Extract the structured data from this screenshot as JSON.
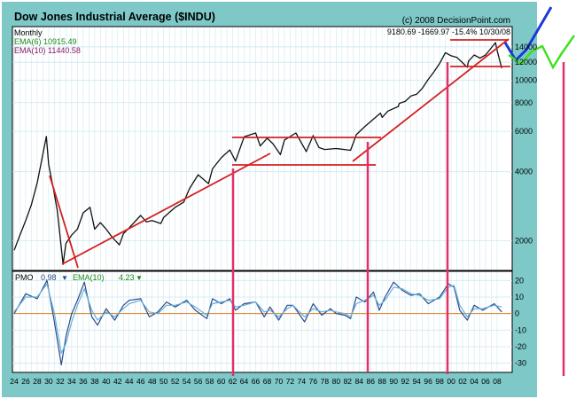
{
  "header": {
    "title": "Dow Jones Industrial Average ($INDU)",
    "copyright": "(c) 2008 DecisionPoint.com",
    "period": "Monthly",
    "ema6_label": "EMA(6) 10915.49",
    "ema10_label": "EMA(10) 11440.58",
    "readout": "9180.69 -1669.97 -15.4% 10/30/08"
  },
  "pmo_panel": {
    "label": "PMO",
    "pmo_value": "0.98",
    "pmo_arrow": "▼",
    "ema_label": "EMA(10)",
    "ema_value": "4.23",
    "ema_arrow": "▼"
  },
  "colors": {
    "frame": "#7ec8c8",
    "price_line": "#111111",
    "trendline": "#d42020",
    "vertical_marker": "#e0306a",
    "pmo_line": "#2a4a8a",
    "pmo_signal": "#66b0d8",
    "zero_line": "#e08020",
    "grid": "#cde8f0",
    "projection_blue": "#1a3ad8",
    "projection_green": "#40e020"
  },
  "chart_data": [
    {
      "type": "line",
      "title": "Dow Jones Industrial Average ($INDU)",
      "scale": "log",
      "ylim": [
        1500,
        17000
      ],
      "y_ticks": [
        2000,
        4000,
        6000,
        8000,
        10000,
        12000,
        14000
      ],
      "x_range": [
        1924,
        2010
      ],
      "x_tick_labels": [
        "24",
        "26",
        "28",
        "30",
        "32",
        "34",
        "36",
        "38",
        "40",
        "42",
        "44",
        "46",
        "48",
        "50",
        "52",
        "54",
        "56",
        "58",
        "60",
        "62",
        "64",
        "66",
        "68",
        "70",
        "72",
        "74",
        "76",
        "78",
        "80",
        "82",
        "84",
        "86",
        "88",
        "90",
        "92",
        "94",
        "96",
        "98",
        "00",
        "02",
        "04",
        "06",
        "08"
      ],
      "series": [
        {
          "x": [
            1924,
            1925,
            1926,
            1927,
            1928,
            1929.6,
            1930,
            1930.8,
            1931.5,
            1932.5,
            1933,
            1934,
            1935,
            1936,
            1937.2,
            1938,
            1939,
            1940,
            1941,
            1942.3,
            1943,
            1944,
            1946,
            1947,
            1948,
            1949.5,
            1950,
            1952,
            1953.5,
            1954.5,
            1956,
            1957.8,
            1958.5,
            1960,
            1961.5,
            1962.5,
            1964,
            1966,
            1966.8,
            1968,
            1969,
            1970.3,
            1971,
            1973,
            1974.8,
            1976,
            1977,
            1978,
            1980,
            1982.5,
            1983.5,
            1985,
            1987.7,
            1988,
            1989,
            1990.8,
            1991,
            1992,
            1993,
            1994,
            1995,
            1996,
            1997,
            1998,
            1999,
            2000,
            2001,
            2002.8,
            2003,
            2004,
            2005,
            2006,
            2007.7,
            2008,
            2008.8
          ],
          "y": [
            1820,
            2120,
            2450,
            2880,
            3580,
            5700,
            4300,
            3400,
            2700,
            1580,
            1950,
            2120,
            2250,
            2650,
            2800,
            2250,
            2400,
            2250,
            2080,
            1920,
            2150,
            2280,
            2580,
            2420,
            2450,
            2380,
            2530,
            2800,
            2950,
            3380,
            3880,
            3550,
            4120,
            4600,
            4980,
            4450,
            5680,
            5900,
            5180,
            5600,
            5300,
            4750,
            5500,
            5900,
            4900,
            5750,
            5100,
            5000,
            5050,
            4960,
            5800,
            6300,
            7200,
            6900,
            7350,
            7700,
            7950,
            8100,
            8550,
            8700,
            9250,
            10100,
            10900,
            11850,
            13200,
            12800,
            12600,
            11400,
            12100,
            12900,
            12500,
            12900,
            14600,
            13500,
            11300
          ]
        }
      ]
    },
    {
      "type": "line",
      "title": "PMO",
      "ylim": [
        -35,
        25
      ],
      "y_ticks": [
        20,
        10,
        0,
        -10,
        -20,
        -30
      ],
      "series": [
        {
          "name": "PMO",
          "x": [
            1924,
            1926,
            1928,
            1929.7,
            1931,
            1932.2,
            1933,
            1934,
            1935,
            1936.2,
            1937.5,
            1938.5,
            1940,
            1941.5,
            1943,
            1944,
            1946,
            1947.5,
            1949,
            1950.5,
            1952,
            1954,
            1955.5,
            1957.5,
            1958.5,
            1960,
            1961.5,
            1962.5,
            1964,
            1966,
            1967.5,
            1968.5,
            1970,
            1971.5,
            1972.5,
            1974.5,
            1976,
            1977.5,
            1979,
            1980,
            1981.5,
            1982.5,
            1983.5,
            1985,
            1986.5,
            1987.5,
            1988.5,
            1990,
            1991.5,
            1993,
            1994.5,
            1996,
            1998,
            1999.5,
            2000.5,
            2001.5,
            2002.8,
            2004,
            2005.5,
            2007.5,
            2008.8
          ],
          "values": [
            0,
            12,
            9,
            20,
            -5,
            -31,
            -14,
            0,
            8,
            19,
            -2,
            -7,
            3,
            -4,
            5,
            8,
            9,
            -2,
            1,
            7,
            4,
            8,
            2,
            -3,
            9,
            6,
            9,
            2,
            6,
            7,
            -2,
            4,
            -4,
            5,
            5,
            -5,
            6,
            -1,
            3,
            0,
            -1,
            -3,
            10,
            7,
            13,
            2,
            10,
            19,
            14,
            11,
            12,
            6,
            10,
            18,
            16,
            2,
            -4,
            5,
            2,
            6,
            1
          ]
        },
        {
          "name": "EMA(10)",
          "x": [
            1924,
            1926,
            1928,
            1929.7,
            1931,
            1932.2,
            1933,
            1934,
            1935,
            1936.2,
            1937.5,
            1938.5,
            1940,
            1941.5,
            1943,
            1944,
            1946,
            1947.5,
            1949,
            1950.5,
            1952,
            1954,
            1955.5,
            1957.5,
            1958.5,
            1960,
            1961.5,
            1962.5,
            1964,
            1966,
            1967.5,
            1968.5,
            1970,
            1971.5,
            1972.5,
            1974.5,
            1976,
            1977.5,
            1979,
            1980,
            1981.5,
            1982.5,
            1983.5,
            1985,
            1986.5,
            1987.5,
            1988.5,
            1990,
            1991.5,
            1993,
            1994.5,
            1996,
            1998,
            1999.5,
            2000.5,
            2001.5,
            2002.8,
            2004,
            2005.5,
            2007.5,
            2008.8
          ],
          "values": [
            1,
            10,
            10,
            18,
            0,
            -24,
            -18,
            -5,
            5,
            15,
            2,
            -4,
            1,
            -2,
            3,
            6,
            8,
            1,
            0,
            5,
            5,
            7,
            4,
            -1,
            6,
            7,
            8,
            4,
            5,
            7,
            1,
            2,
            -2,
            3,
            5,
            -2,
            3,
            1,
            2,
            1,
            0,
            -2,
            6,
            8,
            11,
            5,
            8,
            16,
            15,
            12,
            11,
            8,
            9,
            16,
            17,
            5,
            -2,
            3,
            3,
            5,
            4
          ]
        }
      ]
    }
  ]
}
